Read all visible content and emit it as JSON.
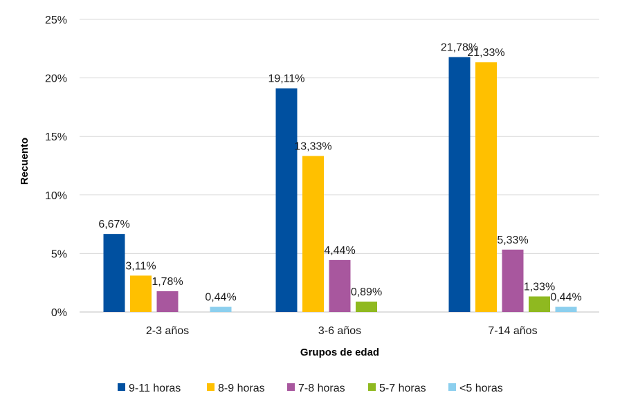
{
  "chart_data": {
    "type": "bar",
    "xlabel": "Grupos de edad",
    "ylabel": "Recuento",
    "ylim": [
      0,
      25
    ],
    "yticks": [
      0,
      5,
      10,
      15,
      20,
      25
    ],
    "ytick_labels": [
      "0%",
      "5%",
      "10%",
      "15%",
      "20%",
      "25%"
    ],
    "categories": [
      "2-3 años",
      "3-6 años",
      "7-14 años"
    ],
    "grid": true,
    "legend_position": "bottom",
    "series": [
      {
        "name": "9-11 horas",
        "color": "#0050a0",
        "values": [
          6.67,
          19.11,
          21.78
        ],
        "labels": [
          "6,67%",
          "19,11%",
          "21,78%"
        ]
      },
      {
        "name": "8-9 horas",
        "color": "#ffc000",
        "values": [
          3.11,
          13.33,
          21.33
        ],
        "labels": [
          "3,11%",
          "13,33%",
          "21,33%"
        ]
      },
      {
        "name": "7-8 horas",
        "color": "#a8579e",
        "values": [
          1.78,
          4.44,
          5.33
        ],
        "labels": [
          "1,78%",
          "4,44%",
          "5,33%"
        ]
      },
      {
        "name": "5-7 horas",
        "color": "#8fb920",
        "values": [
          null,
          0.89,
          1.33
        ],
        "labels": [
          "",
          "0,89%",
          "1,33%"
        ]
      },
      {
        "name": "<5 horas",
        "color": "#8ccfee",
        "values": [
          0.44,
          null,
          0.44
        ],
        "labels": [
          "0,44%",
          "",
          "0,44%"
        ]
      }
    ]
  }
}
